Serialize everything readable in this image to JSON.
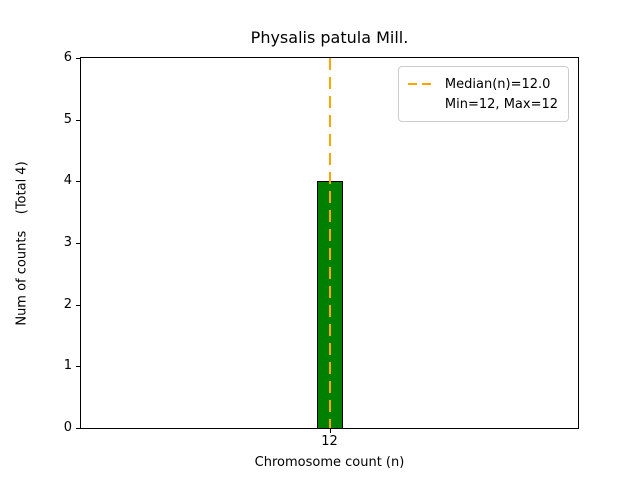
{
  "chart_data": {
    "type": "bar",
    "title": "Physalis patula Mill.",
    "xlabel": "Chromosome count (n)",
    "ylabel": "Num of counts    (Total 4)",
    "categories": [
      "12"
    ],
    "values": [
      4
    ],
    "total_counts": 4,
    "ylim": [
      0,
      6
    ],
    "yticks": [
      0,
      1,
      2,
      3,
      4,
      5,
      6
    ],
    "grid": false,
    "bar_color": "#008000",
    "bar_edge_color": "#000000",
    "median_line": {
      "x": "12",
      "value": 12.0,
      "color": "#FFA500",
      "style": "dashed"
    },
    "legend_position": "upper right",
    "legend": {
      "entries": [
        {
          "label": "Median(n)=12.0",
          "swatch": "orange-dashed-line"
        },
        {
          "label": "Min=12, Max=12",
          "swatch": "none"
        }
      ]
    }
  }
}
